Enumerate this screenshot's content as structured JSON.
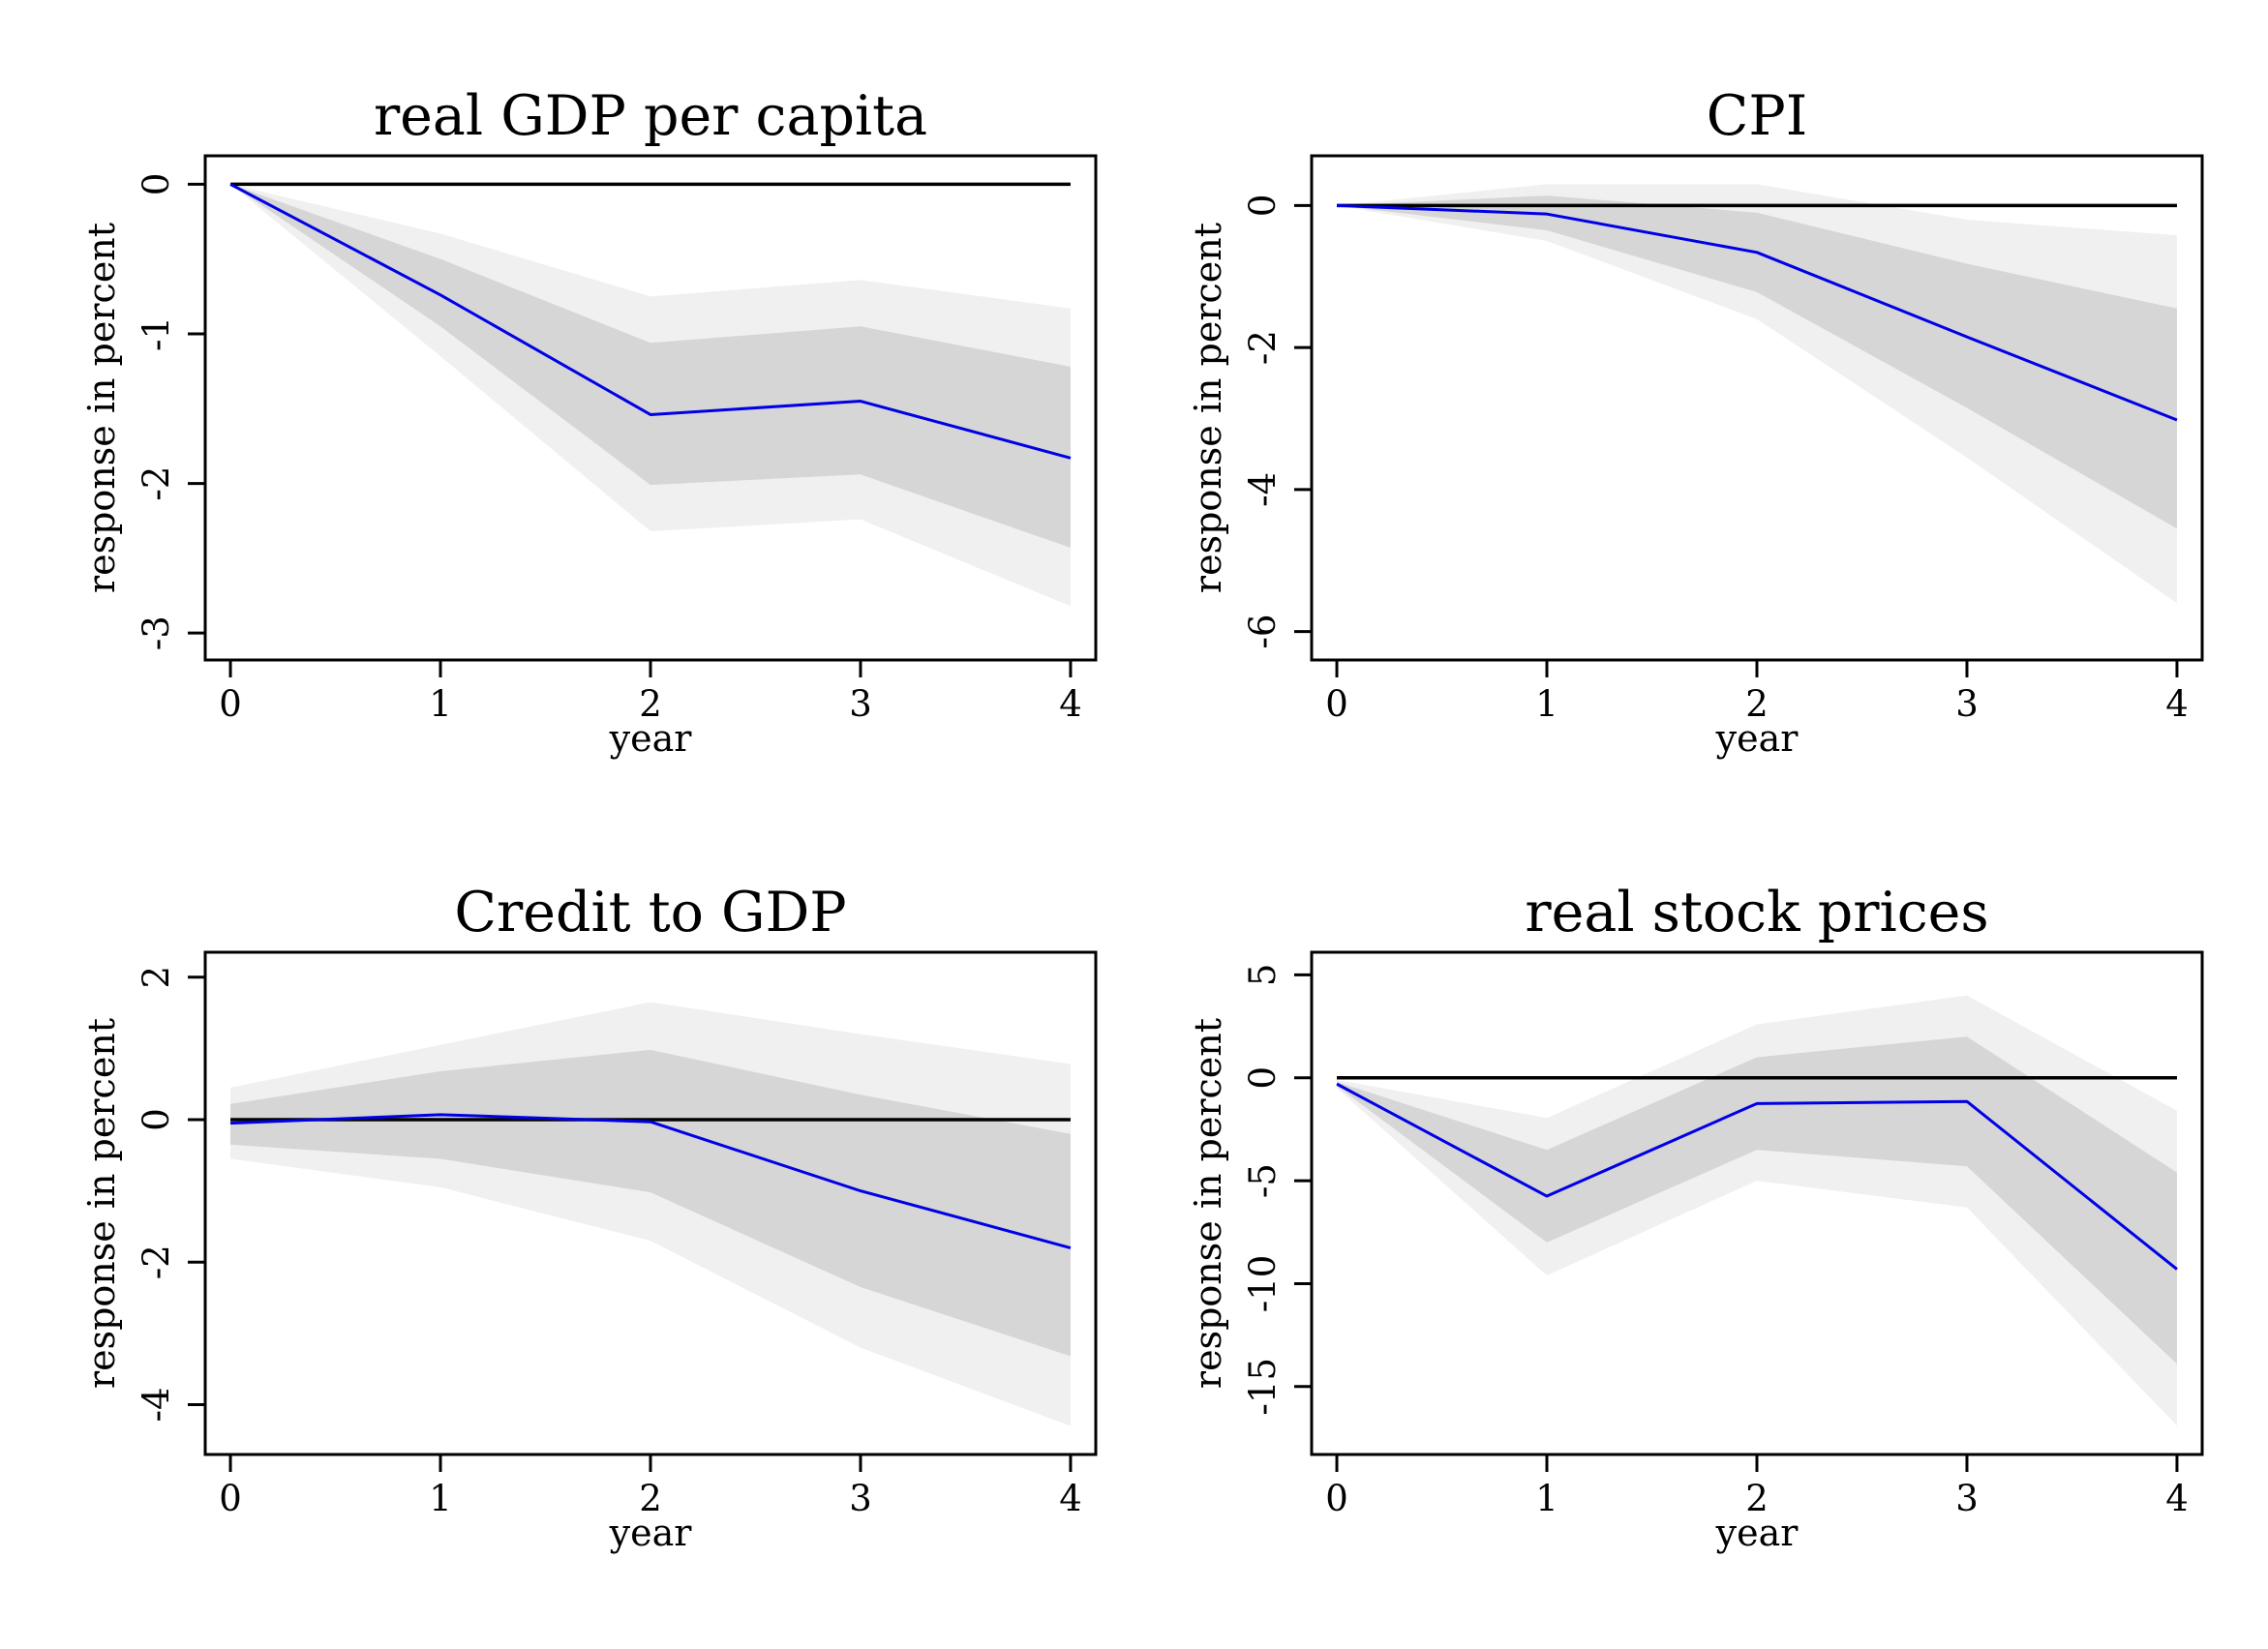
{
  "chart_data": [
    {
      "type": "line",
      "title": "real GDP per capita",
      "xlabel": "year",
      "ylabel": "response in percent",
      "x": [
        0,
        1,
        2,
        3,
        4
      ],
      "x_ticks": [
        "0",
        "1",
        "2",
        "3",
        "4"
      ],
      "y_ticks": [
        "0",
        "-1",
        "-2",
        "-3"
      ],
      "y_tick_values": [
        0,
        -1,
        -2,
        -3
      ],
      "xlim": [
        -0.12,
        4.12
      ],
      "ylim": [
        -3.18,
        0.19
      ],
      "series": [
        {
          "role": "estimate",
          "color": "#0000e6",
          "values": [
            0,
            -0.74,
            -1.54,
            -1.45,
            -1.83
          ]
        },
        {
          "role": "zero-line",
          "color": "#000000",
          "values": [
            0,
            0,
            0,
            0,
            0
          ]
        }
      ],
      "bands": [
        {
          "role": "outer",
          "color": "#f0f0f0",
          "lower": [
            0,
            -1.15,
            -2.32,
            -2.24,
            -2.82
          ],
          "upper": [
            0,
            -0.33,
            -0.75,
            -0.64,
            -0.83
          ]
        },
        {
          "role": "inner",
          "color": "#d6d6d6",
          "lower": [
            0,
            -0.95,
            -2.01,
            -1.94,
            -2.43
          ],
          "upper": [
            0,
            -0.5,
            -1.06,
            -0.95,
            -1.22
          ]
        }
      ]
    },
    {
      "type": "line",
      "title": "CPI",
      "xlabel": "year",
      "ylabel": "response in percent",
      "x": [
        0,
        1,
        2,
        3,
        4
      ],
      "x_ticks": [
        "0",
        "1",
        "2",
        "3",
        "4"
      ],
      "y_ticks": [
        "0",
        "-2",
        "-4",
        "-6"
      ],
      "y_tick_values": [
        0,
        -2,
        -4,
        -6
      ],
      "xlim": [
        -0.12,
        4.12
      ],
      "ylim": [
        -6.4,
        0.7
      ],
      "series": [
        {
          "role": "estimate",
          "color": "#0000e6",
          "values": [
            0,
            -0.12,
            -0.66,
            -1.85,
            -3.02
          ]
        },
        {
          "role": "zero-line",
          "color": "#000000",
          "values": [
            0,
            0,
            0,
            0,
            0
          ]
        }
      ],
      "bands": [
        {
          "role": "outer",
          "color": "#f0f0f0",
          "lower": [
            0,
            -0.5,
            -1.6,
            -3.55,
            -5.6
          ],
          "upper": [
            0,
            0.3,
            0.3,
            -0.2,
            -0.42
          ]
        },
        {
          "role": "inner",
          "color": "#d6d6d6",
          "lower": [
            0,
            -0.35,
            -1.22,
            -2.85,
            -4.55
          ],
          "upper": [
            0,
            0.14,
            -0.1,
            -0.82,
            -1.45
          ]
        }
      ]
    },
    {
      "type": "line",
      "title": "Credit to GDP",
      "xlabel": "year",
      "ylabel": "response in percent",
      "x": [
        0,
        1,
        2,
        3,
        4
      ],
      "x_ticks": [
        "0",
        "1",
        "2",
        "3",
        "4"
      ],
      "y_ticks": [
        "2",
        "0",
        "-2",
        "-4"
      ],
      "y_tick_values": [
        2,
        0,
        -2,
        -4
      ],
      "xlim": [
        -0.12,
        4.12
      ],
      "ylim": [
        -4.7,
        2.35
      ],
      "series": [
        {
          "role": "estimate",
          "color": "#0000e6",
          "values": [
            -0.05,
            0.07,
            -0.03,
            -1.0,
            -1.8
          ]
        },
        {
          "role": "zero-line",
          "color": "#000000",
          "values": [
            0,
            0,
            0,
            0,
            0
          ]
        }
      ],
      "bands": [
        {
          "role": "outer",
          "color": "#f0f0f0",
          "lower": [
            -0.55,
            -0.95,
            -1.7,
            -3.2,
            -4.3
          ],
          "upper": [
            0.45,
            1.05,
            1.65,
            1.2,
            0.78
          ]
        },
        {
          "role": "inner",
          "color": "#d6d6d6",
          "lower": [
            -0.35,
            -0.55,
            -1.02,
            -2.35,
            -3.32
          ],
          "upper": [
            0.22,
            0.68,
            0.98,
            0.35,
            -0.2
          ]
        }
      ]
    },
    {
      "type": "line",
      "title": "real stock prices",
      "xlabel": "year",
      "ylabel": "response in percent",
      "x": [
        0,
        1,
        2,
        3,
        4
      ],
      "x_ticks": [
        "0",
        "1",
        "2",
        "3",
        "4"
      ],
      "y_ticks": [
        "5",
        "0",
        "-5",
        "-10",
        "-15"
      ],
      "y_tick_values": [
        5,
        0,
        -5,
        -10,
        -15
      ],
      "xlim": [
        -0.12,
        4.12
      ],
      "ylim": [
        -18.3,
        6.1
      ],
      "series": [
        {
          "role": "estimate",
          "color": "#0000e6",
          "values": [
            -0.3,
            -5.75,
            -1.25,
            -1.15,
            -9.3
          ]
        },
        {
          "role": "zero-line",
          "color": "#000000",
          "values": [
            0,
            0,
            0,
            0,
            0
          ]
        }
      ],
      "bands": [
        {
          "role": "outer",
          "color": "#f0f0f0",
          "lower": [
            -0.5,
            -9.6,
            -5.0,
            -6.3,
            -16.9
          ],
          "upper": [
            -0.1,
            -1.95,
            2.6,
            4.0,
            -1.6
          ]
        },
        {
          "role": "inner",
          "color": "#d6d6d6",
          "lower": [
            -0.4,
            -8.0,
            -3.5,
            -4.3,
            -13.9
          ],
          "upper": [
            -0.2,
            -3.5,
            1.0,
            2.0,
            -4.6
          ]
        }
      ]
    }
  ]
}
